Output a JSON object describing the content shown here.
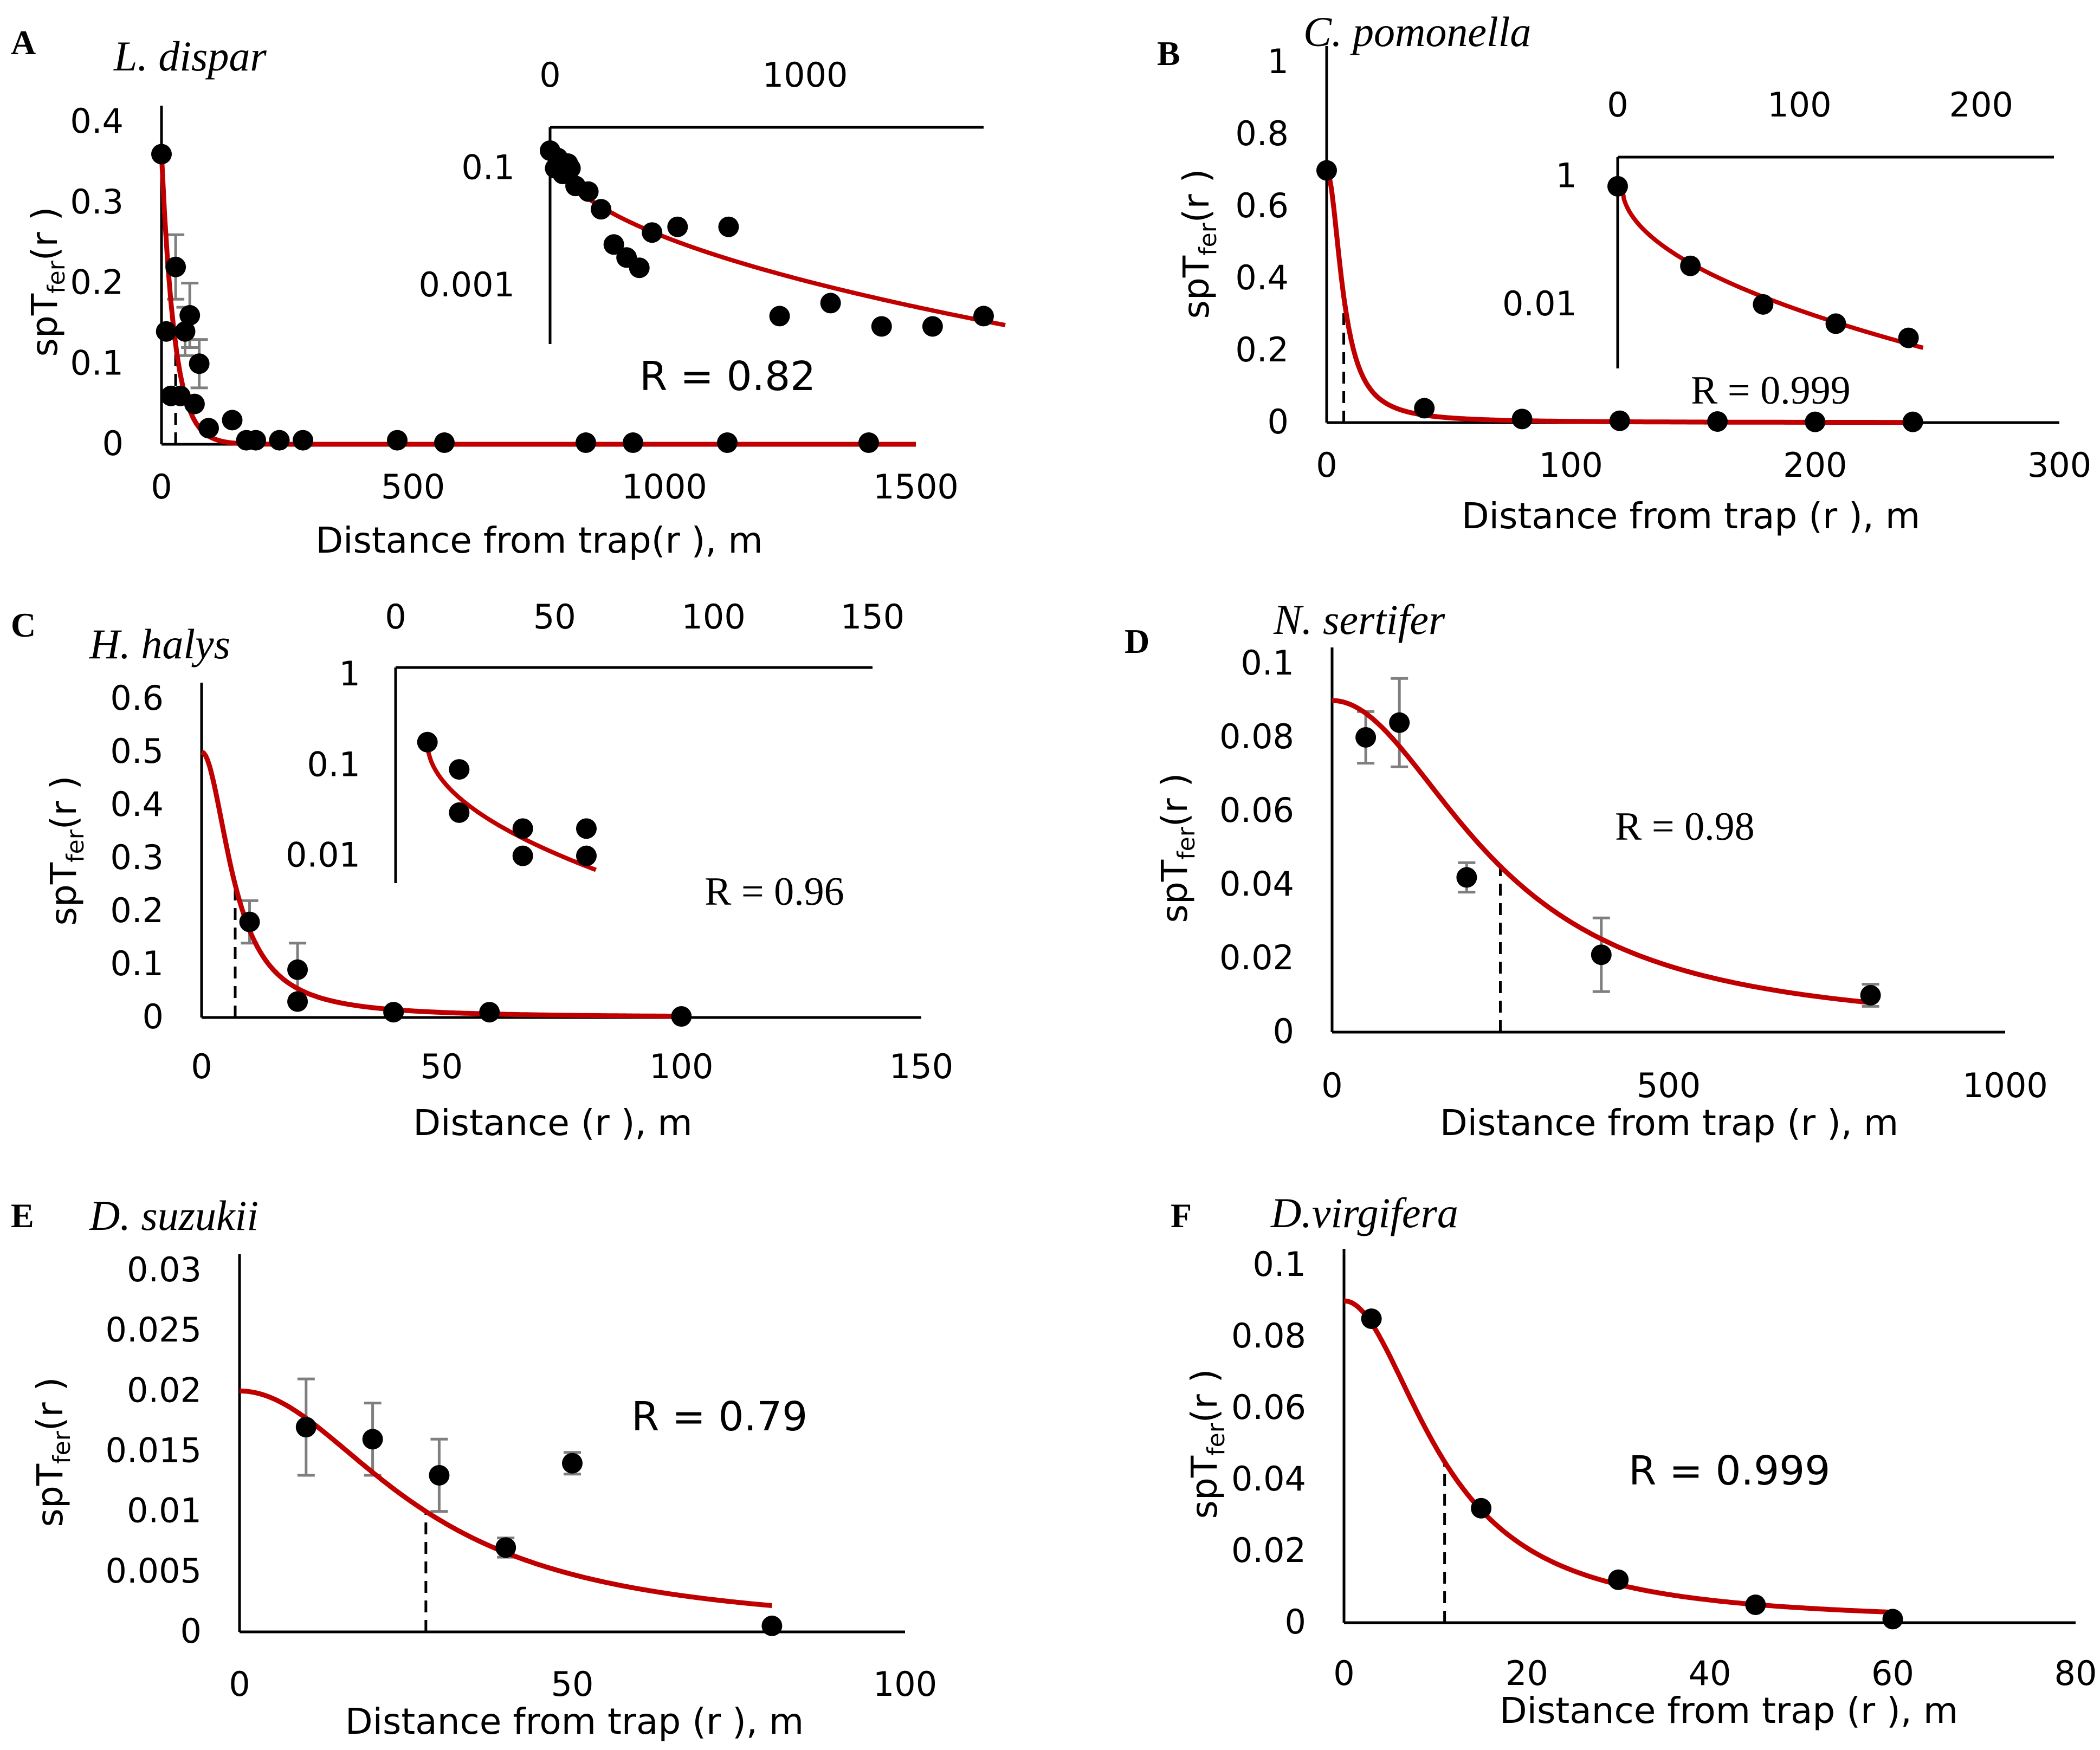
{
  "figure": {
    "ylabel_main": "spT",
    "ylabel_sub": "fer",
    "ylabel_tail": "(r )",
    "colors": {
      "curve": "#c00000",
      "point": "#000000",
      "axis": "#000000",
      "errorbar": "#7f7f7f"
    }
  },
  "chart_data": [
    {
      "id": "A",
      "label": "A",
      "species": "L. dispar",
      "type": "scatter",
      "xlabel": "Distance from trap(r ), m",
      "xlim": [
        0,
        1600
      ],
      "ylim": [
        0,
        0.4
      ],
      "xticks": [
        "0",
        "500",
        "1000",
        "1500"
      ],
      "yticks": [
        "0",
        "0.1",
        "0.2",
        "0.3",
        "0.4"
      ],
      "r_text": "R = 0.82",
      "points": [
        [
          0,
          0.36
        ],
        [
          10,
          0.14
        ],
        [
          20,
          0.06
        ],
        [
          30,
          0.22
        ],
        [
          40,
          0.06
        ],
        [
          50,
          0.14
        ],
        [
          60,
          0.16
        ],
        [
          70,
          0.05
        ],
        [
          80,
          0.1
        ],
        [
          100,
          0.02
        ],
        [
          150,
          0.03
        ],
        [
          180,
          0.005
        ],
        [
          200,
          0.005
        ],
        [
          250,
          0.005
        ],
        [
          300,
          0.005
        ],
        [
          500,
          0.005
        ],
        [
          600,
          0.002
        ],
        [
          900,
          0.002
        ],
        [
          1000,
          0.002
        ],
        [
          1200,
          0.002
        ],
        [
          1500,
          0.002
        ]
      ],
      "error_points": [
        [
          30,
          0.22,
          0.04
        ],
        [
          50,
          0.14,
          0.03
        ],
        [
          60,
          0.16,
          0.04
        ],
        [
          80,
          0.1,
          0.03
        ]
      ],
      "curve": {
        "kind": "exp",
        "a": 0.36,
        "b": 28,
        "xmax": 1600
      },
      "dash_x": 30,
      "inset": {
        "xticks": [
          "0",
          "1000"
        ],
        "yticks": [
          "0.1",
          "0.001"
        ],
        "points": [
          [
            0,
            0.2
          ],
          [
            20,
            0.1
          ],
          [
            30,
            0.15
          ],
          [
            50,
            0.08
          ],
          [
            70,
            0.12
          ],
          [
            80,
            0.1
          ],
          [
            100,
            0.05
          ],
          [
            150,
            0.04
          ],
          [
            200,
            0.02
          ],
          [
            250,
            0.005
          ],
          [
            300,
            0.003
          ],
          [
            350,
            0.002
          ],
          [
            400,
            0.008
          ],
          [
            500,
            0.01
          ],
          [
            700,
            0.01
          ],
          [
            900,
            0.0003
          ],
          [
            1100,
            0.0005
          ],
          [
            1300,
            0.0002
          ],
          [
            1500,
            0.0002
          ],
          [
            1700,
            0.0003
          ]
        ],
        "curve": "power"
      }
    },
    {
      "id": "B",
      "label": "B",
      "species": "C. pomonella",
      "type": "scatter",
      "xlabel": "Distance from trap (r ), m",
      "xlim": [
        0,
        300
      ],
      "ylim": [
        0,
        1
      ],
      "xticks": [
        "0",
        "100",
        "200",
        "300"
      ],
      "yticks": [
        "0",
        "0.2",
        "0.4",
        "0.6",
        "0.8",
        "1"
      ],
      "r_text": "R = 0.999",
      "points": [
        [
          0,
          0.7
        ],
        [
          40,
          0.04
        ],
        [
          80,
          0.01
        ],
        [
          120,
          0.005
        ],
        [
          160,
          0.003
        ],
        [
          200,
          0.002
        ],
        [
          240,
          0.002
        ]
      ],
      "error_points": [],
      "curve": {
        "kind": "lorentz",
        "a": 0.7,
        "r0": 7,
        "xmax": 240
      },
      "dash_x": 7,
      "inset": {
        "xticks": [
          "0",
          "100",
          "200"
        ],
        "yticks": [
          "1",
          "0.01"
        ],
        "points": [
          [
            0,
            0.7
          ],
          [
            40,
            0.04
          ],
          [
            80,
            0.01
          ],
          [
            120,
            0.005
          ],
          [
            160,
            0.003
          ]
        ],
        "curve": "power"
      }
    },
    {
      "id": "C",
      "label": "C",
      "species": "H. halys",
      "type": "scatter",
      "xlabel": "Distance (r ), m",
      "xlim": [
        0,
        150
      ],
      "ylim": [
        0,
        0.6
      ],
      "xticks": [
        "0",
        "50",
        "100",
        "150"
      ],
      "yticks": [
        "0",
        "0.1",
        "0.2",
        "0.3",
        "0.4",
        "0.5",
        "0.6"
      ],
      "r_text": "R = 0.96",
      "points": [
        [
          10,
          0.18
        ],
        [
          20,
          0.09
        ],
        [
          20,
          0.03
        ],
        [
          40,
          0.01
        ],
        [
          60,
          0.01
        ],
        [
          100,
          0.002
        ]
      ],
      "error_points": [
        [
          10,
          0.18,
          0.04
        ],
        [
          20,
          0.09,
          0.05
        ]
      ],
      "curve": {
        "kind": "lorentz",
        "a": 0.5,
        "r0": 7,
        "xmax": 100
      },
      "dash_x": 7,
      "inset": {
        "xticks": [
          "0",
          "50",
          "100",
          "150"
        ],
        "yticks": [
          "1",
          "0.1",
          "0.01"
        ],
        "points": [
          [
            10,
            0.18
          ],
          [
            20,
            0.09
          ],
          [
            20,
            0.03
          ],
          [
            40,
            0.02
          ],
          [
            40,
            0.01
          ],
          [
            60,
            0.02
          ],
          [
            60,
            0.01
          ]
        ],
        "curve": "power"
      }
    },
    {
      "id": "D",
      "label": "D",
      "species": "N. sertifer",
      "type": "scatter",
      "xlabel": "Distance from trap (r ), m",
      "xlim": [
        0,
        1000
      ],
      "ylim": [
        0,
        0.1
      ],
      "xticks": [
        "0",
        "500",
        "1000"
      ],
      "yticks": [
        "0",
        "0.02",
        "0.04",
        "0.06",
        "0.08",
        "0.1"
      ],
      "r_text": "R = 0.98",
      "points": [
        [
          50,
          0.08
        ],
        [
          100,
          0.084
        ],
        [
          200,
          0.042
        ],
        [
          400,
          0.021
        ],
        [
          800,
          0.01
        ]
      ],
      "error_points": [
        [
          50,
          0.08,
          0.007
        ],
        [
          100,
          0.084,
          0.012
        ],
        [
          200,
          0.042,
          0.004
        ],
        [
          400,
          0.021,
          0.01
        ],
        [
          800,
          0.01,
          0.003
        ]
      ],
      "curve": {
        "kind": "lorentz",
        "a": 0.09,
        "r0": 250,
        "xmax": 800
      },
      "dash_x": 250
    },
    {
      "id": "E",
      "label": "E",
      "species": "D. suzukii",
      "type": "scatter",
      "xlabel": "Distance from trap (r ), m",
      "xlim": [
        0,
        100
      ],
      "ylim": [
        0,
        0.03
      ],
      "xticks": [
        "0",
        "50",
        "100"
      ],
      "yticks": [
        "0",
        "0.005",
        "0.01",
        "0.015",
        "0.02",
        "0.025",
        "0.03"
      ],
      "r_text": "R = 0.79",
      "points": [
        [
          10,
          0.017
        ],
        [
          20,
          0.016
        ],
        [
          30,
          0.013
        ],
        [
          40,
          0.007
        ],
        [
          50,
          0.014
        ],
        [
          80,
          0.0005
        ]
      ],
      "error_points": [
        [
          10,
          0.017,
          0.004
        ],
        [
          20,
          0.016,
          0.003
        ],
        [
          30,
          0.013,
          0.003
        ],
        [
          40,
          0.007,
          0.0008
        ],
        [
          50,
          0.014,
          0.0009
        ]
      ],
      "curve": {
        "kind": "lorentz",
        "a": 0.02,
        "r0": 28,
        "xmax": 80
      },
      "dash_x": 28
    },
    {
      "id": "F",
      "label": "F",
      "species": "D.virgifera",
      "type": "scatter",
      "xlabel": "Distance from trap (r ), m",
      "xlim": [
        0,
        80
      ],
      "ylim": [
        0,
        0.1
      ],
      "xticks": [
        "0",
        "20",
        "40",
        "60",
        "80"
      ],
      "yticks": [
        "0",
        "0.02",
        "0.04",
        "0.06",
        "0.08",
        "0.1"
      ],
      "r_text": "R = 0.999",
      "points": [
        [
          3,
          0.085
        ],
        [
          15,
          0.032
        ],
        [
          30,
          0.012
        ],
        [
          45,
          0.005
        ],
        [
          60,
          0.001
        ]
      ],
      "error_points": [],
      "curve": {
        "kind": "lorentz",
        "a": 0.09,
        "r0": 11,
        "xmax": 60
      },
      "dash_x": 11
    }
  ]
}
